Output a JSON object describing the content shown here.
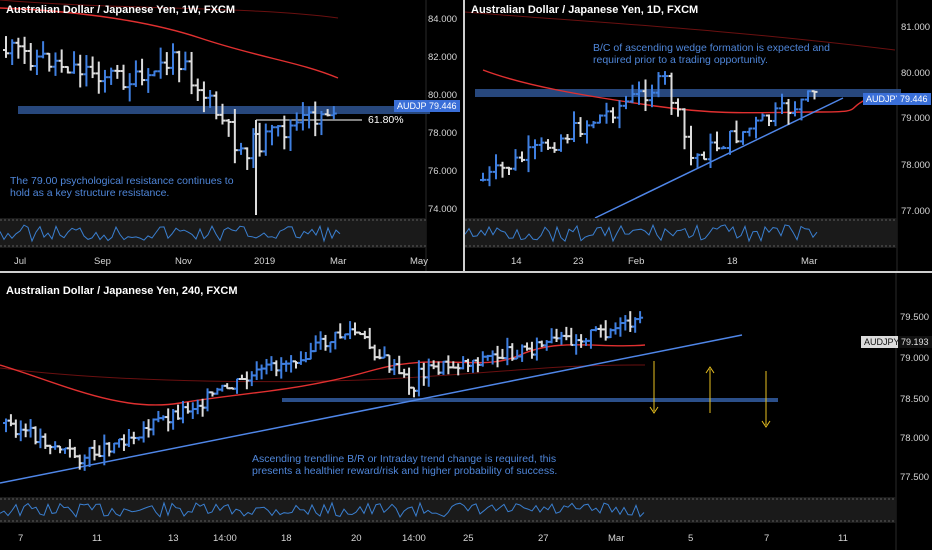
{
  "colors": {
    "up": "#3f7fe0",
    "down": "#dddddd",
    "ma": "#e03030",
    "trend": "#4f86e8",
    "zone": "#2b4f8a",
    "arrow": "#e8c020",
    "rsi": "#3a7fd0",
    "osc_bg": "#1a1a1a"
  },
  "charts": [
    {
      "id": "weekly",
      "title": "Australian Dollar / Japanese Yen, 1W, FXCM",
      "y_ticks": [
        "84.000",
        "82.000",
        "80.000",
        "78.000",
        "76.000",
        "74.000"
      ],
      "x_ticks": [
        "Jul",
        "Sep",
        "Nov",
        "2019",
        "Mar",
        "May"
      ],
      "price_tag": {
        "symbol": "AUDJPY",
        "value": "79.446"
      },
      "fib_label": "61.80%",
      "annotation": "The 79.00 psychological resistance continues to hold as a key structure resistance."
    },
    {
      "id": "daily",
      "title": "Australian Dollar / Japanese Yen, 1D, FXCM",
      "y_ticks": [
        "81.000",
        "80.000",
        "79.000",
        "78.000",
        "77.000"
      ],
      "x_ticks": [
        "14",
        "23",
        "Feb",
        "18",
        "Mar"
      ],
      "price_tag": {
        "symbol": "AUDJPY",
        "value": "79.446"
      },
      "annotation": "B/C of ascending wedge formation is expected and required prior to a trading opportunity."
    },
    {
      "id": "h4",
      "title": "Australian Dollar / Japanese Yen, 240, FXCM",
      "y_ticks": [
        "79.500",
        "79.000",
        "78.500",
        "78.000",
        "77.500"
      ],
      "x_ticks": [
        "7",
        "11",
        "13",
        "14:00",
        "18",
        "20",
        "14:00",
        "25",
        "27",
        "Mar",
        "5",
        "7",
        "11"
      ],
      "price_tag": {
        "symbol": "AUDJPY",
        "value": "79.193"
      },
      "annotation": "Ascending trendline B/R or Intraday trend change is required, this presents a healthier reward/risk and higher probability of success."
    }
  ]
}
